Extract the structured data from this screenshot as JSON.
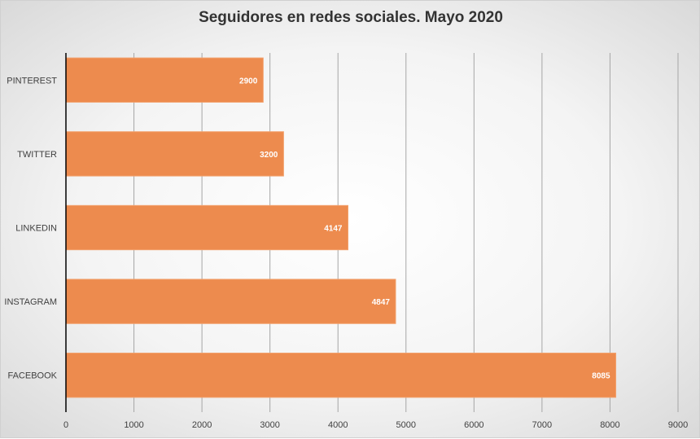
{
  "chart_data": {
    "type": "bar",
    "orientation": "horizontal",
    "title": "Seguidores  en redes sociales. Mayo 2020",
    "categories": [
      "PINTEREST",
      "TWITTER",
      "LINKEDIN",
      "INSTAGRAM",
      "FACEBOOK"
    ],
    "values": [
      2900,
      3200,
      4147,
      4847,
      8085
    ],
    "xlim": [
      0,
      9000
    ],
    "xticks": [
      0,
      1000,
      2000,
      3000,
      4000,
      5000,
      6000,
      7000,
      8000,
      9000
    ],
    "grid": "vertical",
    "legend": "none",
    "colors": {
      "bar": "#ED8B4E",
      "bar_stroke": "#F2A06B",
      "grid": "#a6a6a6",
      "axis": "#000000"
    }
  }
}
